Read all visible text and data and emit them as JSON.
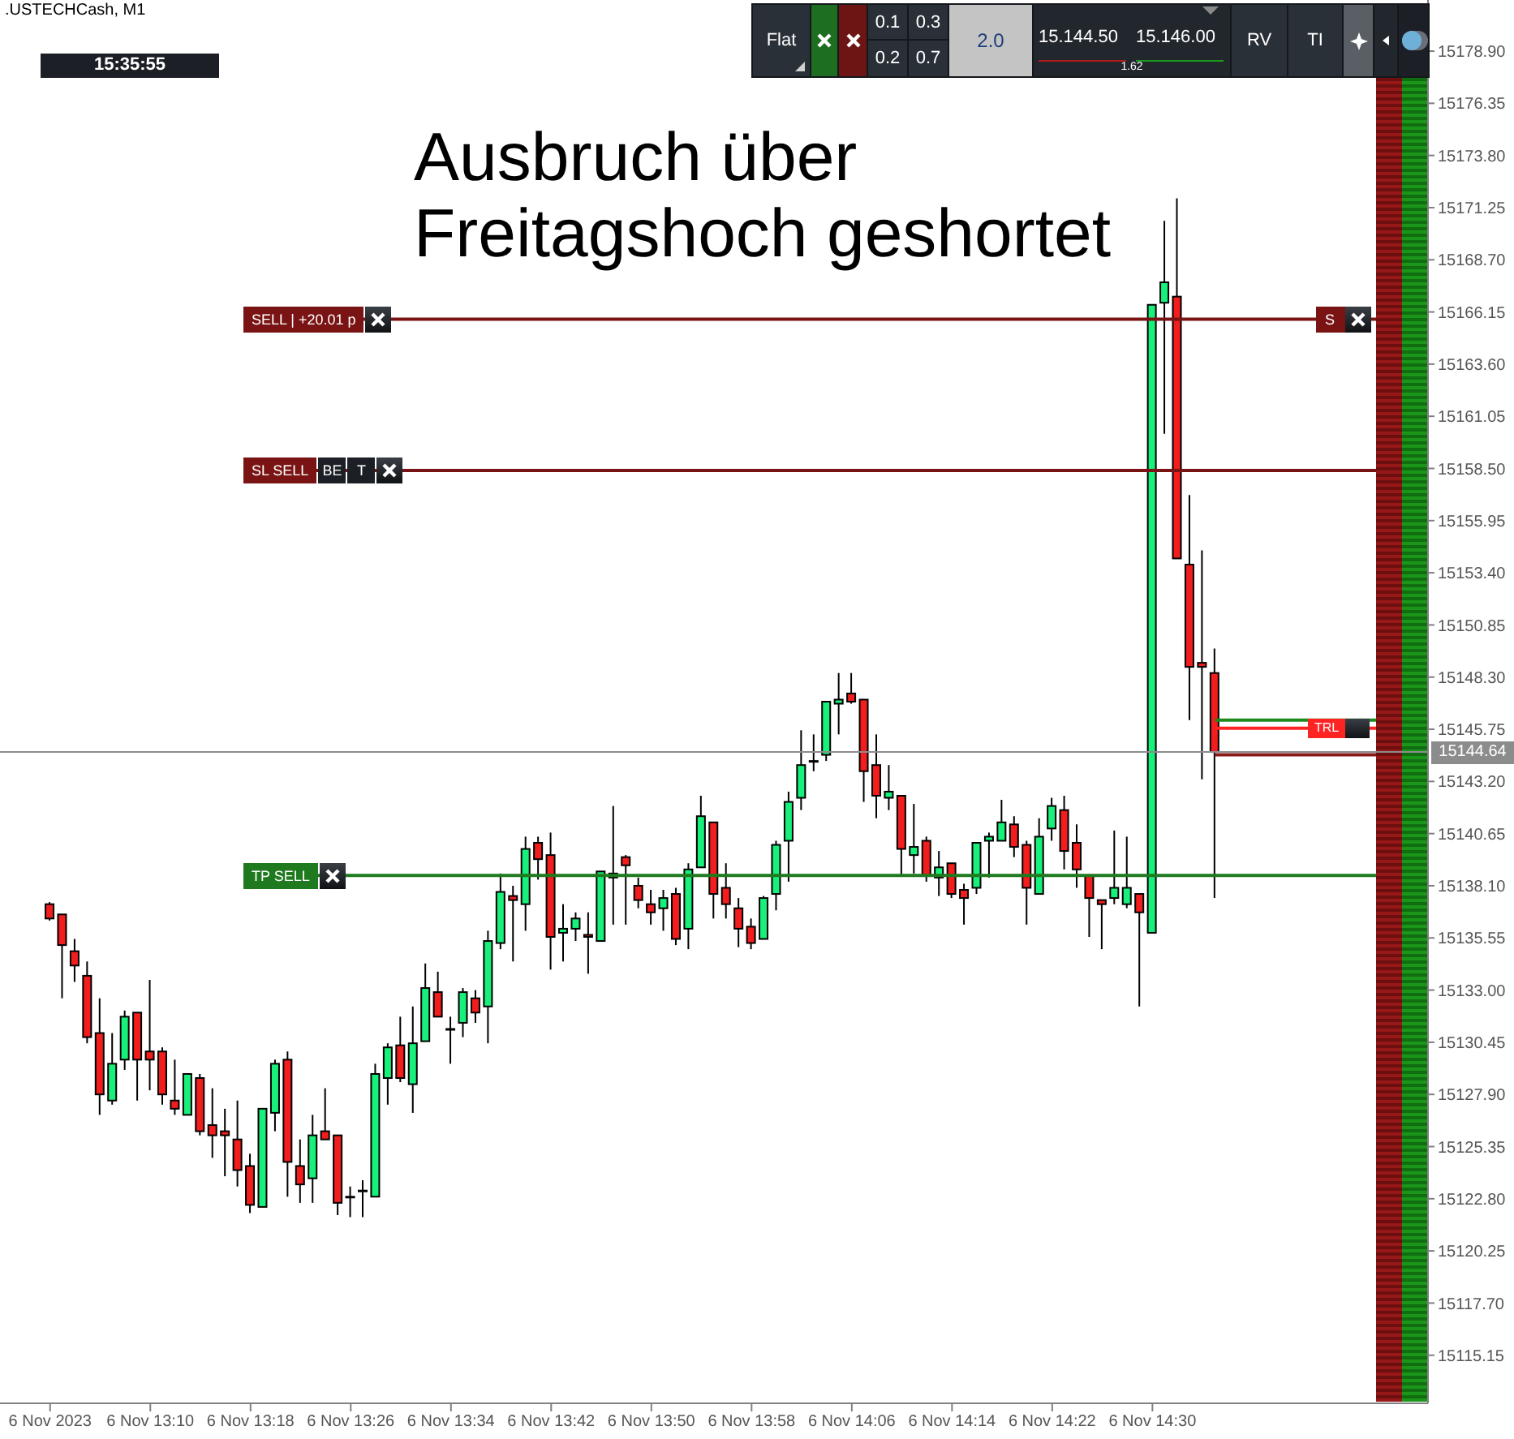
{
  "chart_data": {
    "type": "candlestick",
    "title": ".USTECHCash, M1",
    "annotations": [
      "Ausbruch über Freitagshoch geshortet",
      "15:35:55",
      "Flat",
      "0.1",
      "0.3",
      "0.2",
      "0.7",
      "2.0",
      "15.144.50",
      "15.146.00",
      "1.62",
      "RV",
      "TI",
      "BE",
      "T",
      {
        "text": "S",
        "x": "2023-11-06T14:43",
        "y": 15165.8
      }
    ],
    "x": [
      "2023-11-06T13:02",
      "2023-11-06T13:03",
      "2023-11-06T13:04",
      "2023-11-06T13:05",
      "2023-11-06T13:06",
      "2023-11-06T13:07",
      "2023-11-06T13:08",
      "2023-11-06T13:09",
      "2023-11-06T13:10",
      "2023-11-06T13:11",
      "2023-11-06T13:12",
      "2023-11-06T13:13",
      "2023-11-06T13:14",
      "2023-11-06T13:15",
      "2023-11-06T13:16",
      "2023-11-06T13:17",
      "2023-11-06T13:18",
      "2023-11-06T13:19",
      "2023-11-06T13:20",
      "2023-11-06T13:21",
      "2023-11-06T13:22",
      "2023-11-06T13:23",
      "2023-11-06T13:24",
      "2023-11-06T13:25",
      "2023-11-06T13:26",
      "2023-11-06T13:27",
      "2023-11-06T13:28",
      "2023-11-06T13:29",
      "2023-11-06T13:30",
      "2023-11-06T13:31",
      "2023-11-06T13:32",
      "2023-11-06T13:33",
      "2023-11-06T13:34",
      "2023-11-06T13:35",
      "2023-11-06T13:36",
      "2023-11-06T13:37",
      "2023-11-06T13:38",
      "2023-11-06T13:39",
      "2023-11-06T13:40",
      "2023-11-06T13:41",
      "2023-11-06T13:42",
      "2023-11-06T13:43",
      "2023-11-06T13:44",
      "2023-11-06T13:45",
      "2023-11-06T13:46",
      "2023-11-06T13:47",
      "2023-11-06T13:48",
      "2023-11-06T13:49",
      "2023-11-06T13:50",
      "2023-11-06T13:51",
      "2023-11-06T13:52",
      "2023-11-06T13:53",
      "2023-11-06T13:54",
      "2023-11-06T13:55",
      "2023-11-06T13:56",
      "2023-11-06T13:57",
      "2023-11-06T13:58",
      "2023-11-06T13:59",
      "2023-11-06T14:00",
      "2023-11-06T14:01",
      "2023-11-06T14:02",
      "2023-11-06T14:03",
      "2023-11-06T14:04",
      "2023-11-06T14:05",
      "2023-11-06T14:06",
      "2023-11-06T14:07",
      "2023-11-06T14:08",
      "2023-11-06T14:09",
      "2023-11-06T14:10",
      "2023-11-06T14:11",
      "2023-11-06T14:12",
      "2023-11-06T14:13",
      "2023-11-06T14:14",
      "2023-11-06T14:15",
      "2023-11-06T14:16",
      "2023-11-06T14:17",
      "2023-11-06T14:18",
      "2023-11-06T14:19",
      "2023-11-06T14:20",
      "2023-11-06T14:21",
      "2023-11-06T14:22",
      "2023-11-06T14:23",
      "2023-11-06T14:24",
      "2023-11-06T14:25",
      "2023-11-06T14:26",
      "2023-11-06T14:27",
      "2023-11-06T14:28",
      "2023-11-06T14:29",
      "2023-11-06T14:30",
      "2023-11-06T14:31",
      "2023-11-06T14:32",
      "2023-11-06T14:33",
      "2023-11-06T14:34",
      "2023-11-06T14:35"
    ],
    "ohlc": [
      [
        15137.2,
        15137.3,
        15136.4,
        15136.5
      ],
      [
        15136.7,
        15136.7,
        15132.6,
        15135.2
      ],
      [
        15134.9,
        15135.5,
        15133.4,
        15134.2
      ],
      [
        15133.7,
        15134.4,
        15130.4,
        15130.7
      ],
      [
        15130.9,
        15132.6,
        15126.9,
        15127.9
      ],
      [
        15127.6,
        15130.9,
        15127.4,
        15129.4
      ],
      [
        15129.6,
        15132.0,
        15129.1,
        15131.7
      ],
      [
        15131.9,
        15131.9,
        15127.6,
        15129.6
      ],
      [
        15130.0,
        15133.5,
        15128.1,
        15129.6
      ],
      [
        15130.0,
        15130.2,
        15127.4,
        15127.9
      ],
      [
        15127.6,
        15129.6,
        15126.9,
        15127.2
      ],
      [
        15126.9,
        15128.9,
        15126.9,
        15128.9
      ],
      [
        15128.7,
        15128.9,
        15125.9,
        15126.1
      ],
      [
        15126.4,
        15128.2,
        15124.8,
        15125.9
      ],
      [
        15126.1,
        15127.2,
        15123.9,
        15125.9
      ],
      [
        15125.7,
        15127.6,
        15123.4,
        15124.2
      ],
      [
        15124.4,
        15125.0,
        15122.1,
        15122.5
      ],
      [
        15122.4,
        15127.2,
        15122.4,
        15127.2
      ],
      [
        15127.0,
        15129.6,
        15126.1,
        15129.4
      ],
      [
        15129.6,
        15130.0,
        15122.9,
        15124.6
      ],
      [
        15124.4,
        15125.7,
        15122.6,
        15123.5
      ],
      [
        15123.8,
        15126.9,
        15122.6,
        15125.9
      ],
      [
        15126.1,
        15128.2,
        15125.7,
        15125.7
      ],
      [
        15125.9,
        15125.9,
        15122.0,
        15122.6
      ],
      [
        15122.9,
        15123.4,
        15121.9,
        15122.9
      ],
      [
        15123.2,
        15123.7,
        15121.9,
        15123.2
      ],
      [
        15122.9,
        15129.4,
        15122.9,
        15128.9
      ],
      [
        15128.7,
        15130.4,
        15127.4,
        15130.2
      ],
      [
        15130.3,
        15131.7,
        15128.5,
        15128.7
      ],
      [
        15128.4,
        15132.2,
        15127.0,
        15130.4
      ],
      [
        15130.5,
        15134.3,
        15130.5,
        15133.1
      ],
      [
        15132.9,
        15133.9,
        15131.7,
        15131.7
      ],
      [
        15131.1,
        15131.7,
        15129.4,
        15131.1
      ],
      [
        15131.4,
        15133.1,
        15130.7,
        15132.9
      ],
      [
        15132.6,
        15133.0,
        15131.4,
        15131.9
      ],
      [
        15132.2,
        15135.9,
        15130.4,
        15135.4
      ],
      [
        15135.3,
        15138.7,
        15135.0,
        15137.8
      ],
      [
        15137.6,
        15138.1,
        15134.4,
        15137.4
      ],
      [
        15137.2,
        15140.5,
        15135.9,
        15139.9
      ],
      [
        15140.2,
        15140.5,
        15138.4,
        15139.4
      ],
      [
        15139.6,
        15140.7,
        15134.0,
        15135.6
      ],
      [
        15135.8,
        15137.2,
        15134.4,
        15136.0
      ],
      [
        15136.0,
        15136.8,
        15135.4,
        15136.5
      ],
      [
        15135.7,
        15136.8,
        15133.8,
        15135.6
      ],
      [
        15135.4,
        15138.8,
        15135.4,
        15138.8
      ],
      [
        15138.7,
        15142.0,
        15136.2,
        15138.5
      ],
      [
        15139.5,
        15139.6,
        15136.2,
        15139.1
      ],
      [
        15138.1,
        15138.5,
        15137.0,
        15137.4
      ],
      [
        15137.2,
        15137.9,
        15136.2,
        15136.8
      ],
      [
        15137.0,
        15137.9,
        15135.9,
        15137.5
      ],
      [
        15137.7,
        15138.0,
        15135.2,
        15135.5
      ],
      [
        15136.0,
        15139.2,
        15135.0,
        15138.9
      ],
      [
        15139.0,
        15142.5,
        15139.0,
        15141.5
      ],
      [
        15141.2,
        15141.2,
        15136.5,
        15137.7
      ],
      [
        15138.0,
        15139.2,
        15136.5,
        15137.2
      ],
      [
        15137.0,
        15137.5,
        15135.1,
        15136.0
      ],
      [
        15136.1,
        15136.5,
        15135.0,
        15135.3
      ],
      [
        15135.5,
        15137.6,
        15135.5,
        15137.5
      ],
      [
        15137.7,
        15140.3,
        15136.9,
        15140.1
      ],
      [
        15140.3,
        15142.7,
        15138.3,
        15142.2
      ],
      [
        15142.4,
        15145.7,
        15141.8,
        15144.0
      ],
      [
        15144.2,
        15145.5,
        15143.7,
        15144.2
      ],
      [
        15144.5,
        15147.1,
        15144.2,
        15147.1
      ],
      [
        15147.0,
        15148.5,
        15145.5,
        15147.2
      ],
      [
        15147.5,
        15148.5,
        15147.0,
        15147.1
      ],
      [
        15147.2,
        15147.2,
        15142.2,
        15143.7
      ],
      [
        15144.0,
        15145.5,
        15141.4,
        15142.5
      ],
      [
        15142.4,
        15144.0,
        15141.8,
        15142.7
      ],
      [
        15142.5,
        15142.5,
        15138.6,
        15139.9
      ],
      [
        15139.6,
        15142.1,
        15138.7,
        15140.0
      ],
      [
        15140.3,
        15140.5,
        15138.3,
        15138.6
      ],
      [
        15138.5,
        15139.8,
        15137.6,
        15139.0
      ],
      [
        15139.2,
        15139.2,
        15137.5,
        15137.7
      ],
      [
        15137.9,
        15138.2,
        15136.2,
        15137.5
      ],
      [
        15138.0,
        15140.2,
        15137.7,
        15140.2
      ],
      [
        15140.3,
        15140.7,
        15138.5,
        15140.5
      ],
      [
        15140.3,
        15142.3,
        15140.3,
        15141.2
      ],
      [
        15141.1,
        15141.5,
        15139.5,
        15140.0
      ],
      [
        15140.1,
        15140.3,
        15136.2,
        15138.0
      ],
      [
        15137.7,
        15141.4,
        15137.7,
        15140.5
      ],
      [
        15140.9,
        15142.4,
        15140.3,
        15142.0
      ],
      [
        15141.8,
        15142.5,
        15138.9,
        15139.8
      ],
      [
        15140.2,
        15141.1,
        15138.0,
        15138.9
      ],
      [
        15138.6,
        15138.6,
        15135.6,
        15137.5
      ],
      [
        15137.4,
        15137.4,
        15135.0,
        15137.2
      ],
      [
        15137.5,
        15140.8,
        15137.2,
        15138.0
      ],
      [
        15137.2,
        15140.5,
        15137.0,
        15138.0
      ],
      [
        15137.7,
        15137.7,
        15132.2,
        15136.8
      ],
      [
        15135.8,
        15166.5,
        15135.8,
        15166.5
      ],
      [
        15166.6,
        15170.6,
        15160.2,
        15167.6
      ],
      [
        15166.9,
        15171.7,
        15154.1,
        15154.1
      ],
      [
        15153.8,
        15157.2,
        15146.2,
        15148.8
      ],
      [
        15149.0,
        15154.5,
        15143.3,
        15148.8
      ],
      [
        15148.5,
        15149.7,
        15137.5,
        15144.64
      ]
    ],
    "colors": [
      "#f21d1d",
      "#f21d1d",
      "#f21d1d",
      "#f21d1d",
      "#f21d1d",
      "#17f07a",
      "#17f07a",
      "#f21d1d",
      "#f21d1d",
      "#f21d1d",
      "#f21d1d",
      "#17f07a",
      "#f21d1d",
      "#f21d1d",
      "#f21d1d",
      "#f21d1d",
      "#f21d1d",
      "#17f07a",
      "#17f07a",
      "#f21d1d",
      "#f21d1d",
      "#17f07a",
      "#f21d1d",
      "#f21d1d",
      "#000000",
      "#000000",
      "#17f07a",
      "#17f07a",
      "#f21d1d",
      "#17f07a",
      "#17f07a",
      "#f21d1d",
      "#000000",
      "#17f07a",
      "#f21d1d",
      "#17f07a",
      "#17f07a",
      "#f21d1d",
      "#17f07a",
      "#f21d1d",
      "#f21d1d",
      "#17f07a",
      "#17f07a",
      "#f21d1d",
      "#17f07a",
      "#f21d1d",
      "#f21d1d",
      "#f21d1d",
      "#f21d1d",
      "#17f07a",
      "#f21d1d",
      "#17f07a",
      "#17f07a",
      "#f21d1d",
      "#f21d1d",
      "#f21d1d",
      "#f21d1d",
      "#17f07a",
      "#17f07a",
      "#17f07a",
      "#17f07a",
      "#000000",
      "#17f07a",
      "#17f07a",
      "#f21d1d",
      "#f21d1d",
      "#f21d1d",
      "#17f07a",
      "#f21d1d",
      "#17f07a",
      "#f21d1d",
      "#17f07a",
      "#f21d1d",
      "#f21d1d",
      "#17f07a",
      "#17f07a",
      "#17f07a",
      "#f21d1d",
      "#f21d1d",
      "#17f07a",
      "#17f07a",
      "#f21d1d",
      "#f21d1d",
      "#f21d1d",
      "#f21d1d",
      "#17f07a",
      "#17f07a",
      "#f21d1d",
      "#17f07a",
      "#17f07a",
      "#f21d1d",
      "#f21d1d",
      "#f21d1d",
      "#f21d1d"
    ],
    "xlim": [
      "2023-11-06T12:58",
      "2023-11-06T14:52"
    ],
    "xticks": [
      {
        "value": "2023-11-06T13:02",
        "label": "6 Nov 2023"
      },
      {
        "value": "2023-11-06T13:10",
        "label": "6 Nov 13:10"
      },
      {
        "value": "2023-11-06T13:18",
        "label": "6 Nov 13:18"
      },
      {
        "value": "2023-11-06T13:26",
        "label": "6 Nov 13:26"
      },
      {
        "value": "2023-11-06T13:34",
        "label": "6 Nov 13:34"
      },
      {
        "value": "2023-11-06T13:42",
        "label": "6 Nov 13:42"
      },
      {
        "value": "2023-11-06T13:50",
        "label": "6 Nov 13:50"
      },
      {
        "value": "2023-11-06T13:58",
        "label": "6 Nov 13:58"
      },
      {
        "value": "2023-11-06T14:06",
        "label": "6 Nov 14:06"
      },
      {
        "value": "2023-11-06T14:14",
        "label": "6 Nov 14:14"
      },
      {
        "value": "2023-11-06T14:22",
        "label": "6 Nov 14:22"
      },
      {
        "value": "2023-11-06T14:30",
        "label": "6 Nov 14:30"
      }
    ],
    "ylim": [
      15112.8,
      15181.4
    ],
    "yticks": [
      {
        "value": 15178.9,
        "label": "15178.90"
      },
      15176.35,
      {
        "value": 15173.8,
        "label": "15173.80"
      },
      15171.25,
      {
        "value": 15168.7,
        "label": "15168.70"
      },
      15166.15,
      {
        "value": 15163.6,
        "label": "15163.60"
      },
      15161.05,
      {
        "value": 15158.5,
        "label": "15158.50"
      },
      15155.95,
      {
        "value": 15153.4,
        "label": "15153.40"
      },
      15150.85,
      {
        "value": 15148.3,
        "label": "15148.30"
      },
      15145.75,
      {
        "value": 15143.2,
        "label": "15143.20"
      },
      15140.65,
      {
        "value": 15138.1,
        "label": "15138.10"
      },
      15135.55,
      {
        "value": 15133,
        "label": "15133.00"
      },
      15130.45,
      {
        "value": 15127.9,
        "label": "15127.90"
      },
      15125.35,
      {
        "value": 15122.8,
        "label": "15122.80"
      },
      15120.25,
      {
        "value": 15117.7,
        "label": "15117.70"
      },
      15115.15
    ],
    "ref_lines": [
      {
        "axis": "y",
        "value": 15165.8,
        "label": "SELL | +20.01 p",
        "color": "#7a1414"
      },
      {
        "axis": "y",
        "value": 15158.4,
        "label": "SL SELL",
        "color": "#7a1414"
      },
      {
        "axis": "y",
        "value": 15138.6,
        "label": "TP SELL",
        "color": "#1f7a1f"
      },
      {
        "axis": "y",
        "value": 15144.64,
        "label": "15144.64",
        "color": "#8c8c8c"
      },
      {
        "axis": "y",
        "value": 15145.8,
        "label": "TRL",
        "color": "#ff2424"
      },
      {
        "axis": "y",
        "value": 15146.2,
        "color": "#1f8a1f"
      },
      {
        "axis": "y",
        "value": 15144.5,
        "color": "#8a1a1a"
      }
    ]
  }
}
